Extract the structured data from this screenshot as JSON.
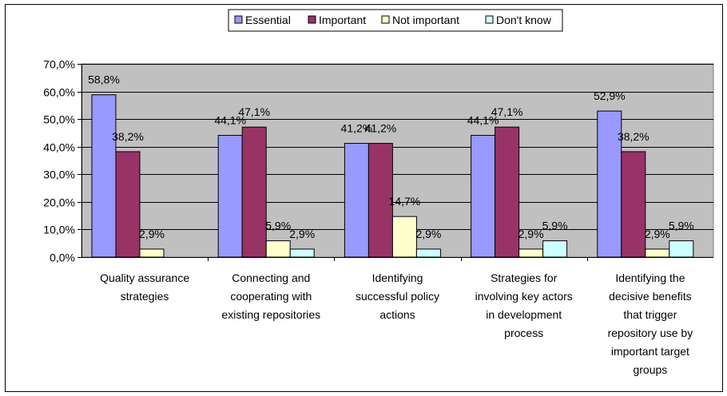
{
  "chart_data": {
    "type": "bar",
    "title": "",
    "xlabel": "",
    "ylabel": "",
    "categories": [
      [
        "Quality assurance",
        "strategies"
      ],
      [
        "Connecting and",
        "cooperating with",
        "existing repositories"
      ],
      [
        "Identifying",
        "successful policy",
        "actions"
      ],
      [
        "Strategies for",
        "involving key actors",
        "in development",
        "process"
      ],
      [
        "Identifying the",
        "decisive benefits",
        "that trigger",
        "repository use by",
        "important target",
        "groups"
      ]
    ],
    "series": [
      {
        "name": "Essential",
        "color": "#9999ff",
        "values": [
          58.8,
          44.1,
          41.2,
          44.1,
          52.9
        ],
        "labels": [
          "58,8%",
          "44,1%",
          "41,2%",
          "44,1%",
          "52,9%"
        ]
      },
      {
        "name": "Important",
        "color": "#993366",
        "values": [
          38.2,
          47.1,
          41.2,
          47.1,
          38.2
        ],
        "labels": [
          "38,2%",
          "47,1%",
          "41,2%",
          "47,1%",
          "38,2%"
        ]
      },
      {
        "name": "Not important",
        "color": "#ffffcc",
        "values": [
          2.9,
          5.9,
          14.7,
          2.9,
          2.9
        ],
        "labels": [
          "2,9%",
          "5,9%",
          "14,7%",
          "2,9%",
          "2,9%"
        ]
      },
      {
        "name": "Don't know",
        "color": "#ccffff",
        "values": [
          0,
          2.9,
          2.9,
          5.9,
          5.9
        ],
        "labels": [
          "",
          "2,9%",
          "2,9%",
          "5,9%",
          "5,9%"
        ]
      }
    ],
    "ylim": [
      0,
      70
    ],
    "y_ticks": [
      0,
      10,
      20,
      30,
      40,
      50,
      60,
      70
    ],
    "y_tick_labels": [
      "0,0%",
      "10,0%",
      "20,0%",
      "30,0%",
      "40,0%",
      "50,0%",
      "60,0%",
      "70,0%"
    ],
    "grid": true,
    "plot_background": "#c0c0c0",
    "legend_position": "top-center"
  }
}
